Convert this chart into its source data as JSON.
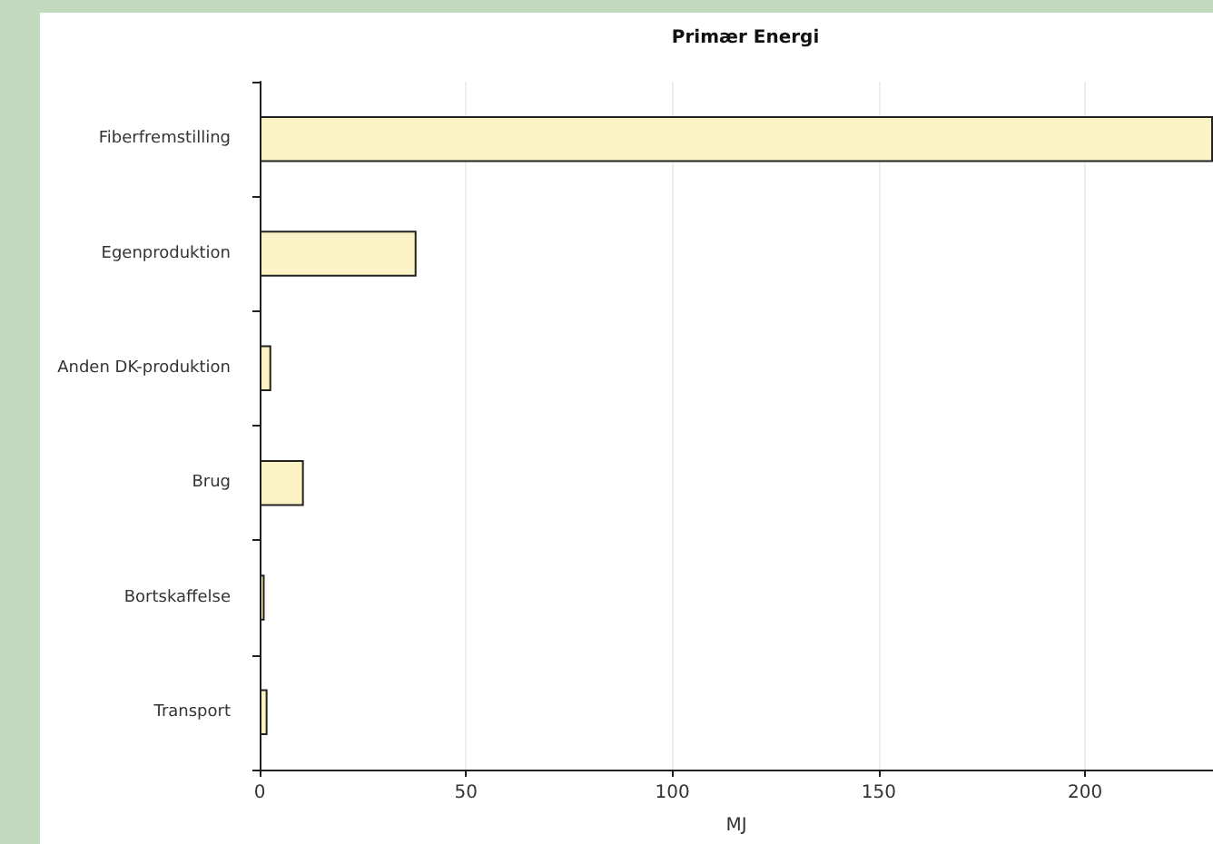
{
  "chart_data": {
    "type": "bar",
    "orientation": "horizontal",
    "title": "Primær Energi",
    "xlabel": "MJ",
    "categories": [
      "Fiberfremstilling",
      "Egenproduktion",
      "Anden DK-produktion",
      "Brug",
      "Bortskaffelse",
      "Transport"
    ],
    "values": [
      231,
      38,
      2.8,
      10.7,
      1.2,
      1.9
    ],
    "color": "#fbf3c5",
    "xlim": [
      0,
      231
    ],
    "xticks": [
      0,
      50,
      100,
      150,
      200
    ],
    "grid": "x"
  }
}
